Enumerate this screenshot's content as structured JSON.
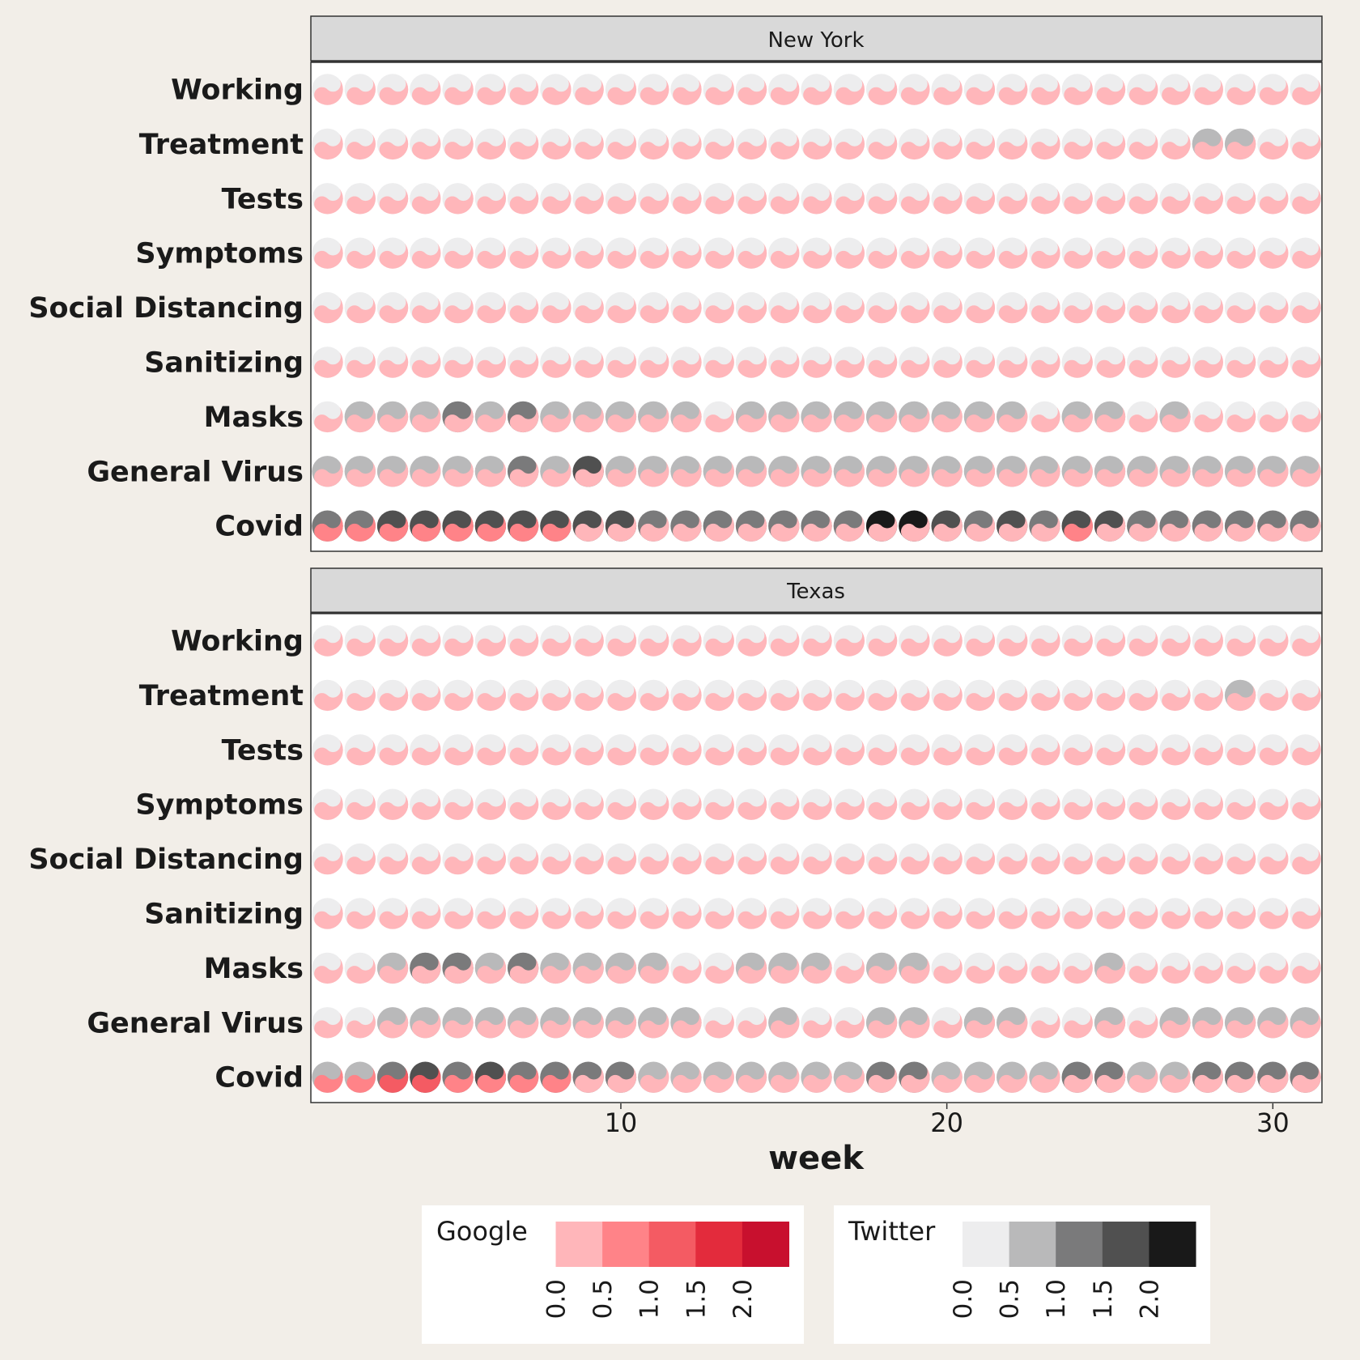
{
  "chart_data": {
    "type": "heatmap",
    "glyph": "yin-yang",
    "xlabel": "week",
    "x_ticks": [
      10,
      20,
      30
    ],
    "weeks": [
      1,
      2,
      3,
      4,
      5,
      6,
      7,
      8,
      9,
      10,
      11,
      12,
      13,
      14,
      15,
      16,
      17,
      18,
      19,
      20,
      21,
      22,
      23,
      24,
      25,
      26,
      27,
      28,
      29,
      30,
      31
    ],
    "categories": [
      "Working",
      "Treatment",
      "Tests",
      "Symptoms",
      "Social Distancing",
      "Sanitizing",
      "Masks",
      "General Virus",
      "Covid"
    ],
    "scales": {
      "google": {
        "title": "Google",
        "breaks": [
          "0.0",
          "0.5",
          "1.0",
          "1.5",
          "2.0"
        ],
        "colors": [
          "#FFB6BA",
          "#FF8388",
          "#F45B63",
          "#E32B3C",
          "#C8102E"
        ]
      },
      "twitter": {
        "title": "Twitter",
        "breaks": [
          "0.0",
          "0.5",
          "1.0",
          "1.5",
          "2.0"
        ],
        "colors": [
          "#EDEDEE",
          "#B9B9BA",
          "#7A7A7B",
          "#505050",
          "#191919"
        ]
      }
    },
    "panels": [
      {
        "title": "New York",
        "google": {
          "Working": [
            0,
            0,
            0,
            0,
            0,
            0,
            0,
            0,
            0,
            0,
            0,
            0,
            0,
            0,
            0,
            0,
            0,
            0,
            0,
            0,
            0,
            0,
            0,
            0,
            0,
            0,
            0,
            0,
            0,
            0,
            0
          ],
          "Treatment": [
            0,
            0,
            0,
            0,
            0,
            0,
            0,
            0,
            0,
            0,
            0,
            0,
            0,
            0,
            0,
            0,
            0,
            0,
            0,
            0,
            0,
            0,
            0,
            0,
            0,
            0,
            0,
            0,
            0,
            0,
            0
          ],
          "Tests": [
            0,
            0,
            0,
            0,
            0,
            0,
            0,
            0,
            0,
            0,
            0,
            0,
            0,
            0,
            0,
            0,
            0,
            0,
            0,
            0,
            0,
            0,
            0,
            0,
            0,
            0,
            0,
            0,
            0,
            0,
            0
          ],
          "Symptoms": [
            0,
            0,
            0,
            0,
            0,
            0,
            0,
            0,
            0,
            0,
            0,
            0,
            0,
            0,
            0,
            0,
            0,
            0,
            0,
            0,
            0,
            0,
            0,
            0,
            0,
            0,
            0,
            0,
            0,
            0,
            0
          ],
          "Social Distancing": [
            0,
            0,
            0,
            0,
            0,
            0,
            0,
            0,
            0,
            0,
            0,
            0,
            0,
            0,
            0,
            0,
            0,
            0,
            0,
            0,
            0,
            0,
            0,
            0,
            0,
            0,
            0,
            0,
            0,
            0,
            0
          ],
          "Sanitizing": [
            0,
            0,
            0,
            0,
            0,
            0,
            0,
            0,
            0,
            0,
            0,
            0,
            0,
            0,
            0,
            0,
            0,
            0,
            0,
            0,
            0,
            0,
            0,
            0,
            0,
            0,
            0,
            0,
            0,
            0,
            0
          ],
          "Masks": [
            0,
            0,
            0,
            0,
            0,
            0,
            0,
            0,
            0,
            0,
            0,
            0,
            0,
            0,
            0,
            0,
            0,
            0,
            0,
            0,
            0,
            0,
            0,
            0,
            0,
            0,
            0,
            0,
            0,
            0,
            0
          ],
          "General Virus": [
            0,
            0,
            0,
            0,
            0,
            0,
            0,
            0,
            0,
            0,
            0,
            0,
            0,
            0,
            0,
            0,
            0,
            0,
            0,
            0,
            0,
            0,
            0,
            0,
            0,
            0,
            0,
            0,
            0,
            0,
            0
          ],
          "Covid": [
            1,
            1,
            1,
            1,
            1,
            1,
            1,
            1,
            0,
            0,
            0,
            0,
            0,
            0,
            0,
            0,
            0,
            0,
            0,
            0,
            0,
            0,
            0,
            1,
            0,
            0,
            0,
            0,
            0,
            0,
            0
          ]
        },
        "twitter": {
          "Working": [
            0,
            0,
            0,
            0,
            0,
            0,
            0,
            0,
            0,
            0,
            0,
            0,
            0,
            0,
            0,
            0,
            0,
            0,
            0,
            0,
            0,
            0,
            0,
            0,
            0,
            0,
            0,
            0,
            0,
            0,
            0
          ],
          "Treatment": [
            0,
            0,
            0,
            0,
            0,
            0,
            0,
            0,
            0,
            0,
            0,
            0,
            0,
            0,
            0,
            0,
            0,
            0,
            0,
            0,
            0,
            0,
            0,
            0,
            0,
            0,
            0,
            1,
            1,
            0,
            0
          ],
          "Tests": [
            0,
            0,
            0,
            0,
            0,
            0,
            0,
            0,
            0,
            0,
            0,
            0,
            0,
            0,
            0,
            0,
            0,
            0,
            0,
            0,
            0,
            0,
            0,
            0,
            0,
            0,
            0,
            0,
            0,
            0,
            0
          ],
          "Symptoms": [
            0,
            0,
            0,
            0,
            0,
            0,
            0,
            0,
            0,
            0,
            0,
            0,
            0,
            0,
            0,
            0,
            0,
            0,
            0,
            0,
            0,
            0,
            0,
            0,
            0,
            0,
            0,
            0,
            0,
            0,
            0
          ],
          "Social Distancing": [
            0,
            0,
            0,
            0,
            0,
            0,
            0,
            0,
            0,
            0,
            0,
            0,
            0,
            0,
            0,
            0,
            0,
            0,
            0,
            0,
            0,
            0,
            0,
            0,
            0,
            0,
            0,
            0,
            0,
            0,
            0
          ],
          "Sanitizing": [
            0,
            0,
            0,
            0,
            0,
            0,
            0,
            0,
            0,
            0,
            0,
            0,
            0,
            0,
            0,
            0,
            0,
            0,
            0,
            0,
            0,
            0,
            0,
            0,
            0,
            0,
            0,
            0,
            0,
            0,
            0
          ],
          "Masks": [
            0,
            1,
            1,
            1,
            2,
            1,
            2,
            1,
            1,
            1,
            1,
            1,
            0,
            1,
            1,
            1,
            1,
            1,
            1,
            1,
            1,
            1,
            0,
            1,
            1,
            0,
            1,
            0,
            0,
            0,
            0
          ],
          "General Virus": [
            1,
            1,
            1,
            1,
            1,
            1,
            2,
            1,
            3,
            1,
            1,
            1,
            1,
            1,
            1,
            1,
            1,
            1,
            1,
            1,
            1,
            1,
            1,
            1,
            1,
            1,
            1,
            1,
            1,
            1,
            1
          ],
          "Covid": [
            2,
            2,
            3,
            3,
            3,
            3,
            3,
            3,
            3,
            3,
            2,
            2,
            2,
            2,
            2,
            2,
            2,
            4,
            4,
            3,
            2,
            3,
            2,
            3,
            3,
            2,
            2,
            2,
            2,
            2,
            2
          ]
        }
      },
      {
        "title": "Texas",
        "google": {
          "Working": [
            0,
            0,
            0,
            0,
            0,
            0,
            0,
            0,
            0,
            0,
            0,
            0,
            0,
            0,
            0,
            0,
            0,
            0,
            0,
            0,
            0,
            0,
            0,
            0,
            0,
            0,
            0,
            0,
            0,
            0,
            0
          ],
          "Treatment": [
            0,
            0,
            0,
            0,
            0,
            0,
            0,
            0,
            0,
            0,
            0,
            0,
            0,
            0,
            0,
            0,
            0,
            0,
            0,
            0,
            0,
            0,
            0,
            0,
            0,
            0,
            0,
            0,
            0,
            0,
            0
          ],
          "Tests": [
            0,
            0,
            0,
            0,
            0,
            0,
            0,
            0,
            0,
            0,
            0,
            0,
            0,
            0,
            0,
            0,
            0,
            0,
            0,
            0,
            0,
            0,
            0,
            0,
            0,
            0,
            0,
            0,
            0,
            0,
            0
          ],
          "Symptoms": [
            0,
            0,
            0,
            0,
            0,
            0,
            0,
            0,
            0,
            0,
            0,
            0,
            0,
            0,
            0,
            0,
            0,
            0,
            0,
            0,
            0,
            0,
            0,
            0,
            0,
            0,
            0,
            0,
            0,
            0,
            0
          ],
          "Social Distancing": [
            0,
            0,
            0,
            0,
            0,
            0,
            0,
            0,
            0,
            0,
            0,
            0,
            0,
            0,
            0,
            0,
            0,
            0,
            0,
            0,
            0,
            0,
            0,
            0,
            0,
            0,
            0,
            0,
            0,
            0,
            0
          ],
          "Sanitizing": [
            0,
            0,
            0,
            0,
            0,
            0,
            0,
            0,
            0,
            0,
            0,
            0,
            0,
            0,
            0,
            0,
            0,
            0,
            0,
            0,
            0,
            0,
            0,
            0,
            0,
            0,
            0,
            0,
            0,
            0,
            0
          ],
          "Masks": [
            0,
            0,
            0,
            0,
            0,
            0,
            0,
            0,
            0,
            0,
            0,
            0,
            0,
            0,
            0,
            0,
            0,
            0,
            0,
            0,
            0,
            0,
            0,
            0,
            0,
            0,
            0,
            0,
            0,
            0,
            0
          ],
          "General Virus": [
            0,
            0,
            0,
            0,
            0,
            0,
            0,
            0,
            0,
            0,
            0,
            0,
            0,
            0,
            0,
            0,
            0,
            0,
            0,
            0,
            0,
            0,
            0,
            0,
            0,
            0,
            0,
            0,
            0,
            0,
            0
          ],
          "Covid": [
            1,
            1,
            2,
            2,
            1,
            1,
            1,
            1,
            0,
            0,
            0,
            0,
            0,
            0,
            0,
            0,
            0,
            0,
            0,
            0,
            0,
            0,
            0,
            0,
            0,
            0,
            0,
            0,
            0,
            0,
            0
          ]
        },
        "twitter": {
          "Working": [
            0,
            0,
            0,
            0,
            0,
            0,
            0,
            0,
            0,
            0,
            0,
            0,
            0,
            0,
            0,
            0,
            0,
            0,
            0,
            0,
            0,
            0,
            0,
            0,
            0,
            0,
            0,
            0,
            0,
            0,
            0
          ],
          "Treatment": [
            0,
            0,
            0,
            0,
            0,
            0,
            0,
            0,
            0,
            0,
            0,
            0,
            0,
            0,
            0,
            0,
            0,
            0,
            0,
            0,
            0,
            0,
            0,
            0,
            0,
            0,
            0,
            0,
            1,
            0,
            0
          ],
          "Tests": [
            0,
            0,
            0,
            0,
            0,
            0,
            0,
            0,
            0,
            0,
            0,
            0,
            0,
            0,
            0,
            0,
            0,
            0,
            0,
            0,
            0,
            0,
            0,
            0,
            0,
            0,
            0,
            0,
            0,
            0,
            0
          ],
          "Symptoms": [
            0,
            0,
            0,
            0,
            0,
            0,
            0,
            0,
            0,
            0,
            0,
            0,
            0,
            0,
            0,
            0,
            0,
            0,
            0,
            0,
            0,
            0,
            0,
            0,
            0,
            0,
            0,
            0,
            0,
            0,
            0
          ],
          "Social Distancing": [
            0,
            0,
            0,
            0,
            0,
            0,
            0,
            0,
            0,
            0,
            0,
            0,
            0,
            0,
            0,
            0,
            0,
            0,
            0,
            0,
            0,
            0,
            0,
            0,
            0,
            0,
            0,
            0,
            0,
            0,
            0
          ],
          "Sanitizing": [
            0,
            0,
            0,
            0,
            0,
            0,
            0,
            0,
            0,
            0,
            0,
            0,
            0,
            0,
            0,
            0,
            0,
            0,
            0,
            0,
            0,
            0,
            0,
            0,
            0,
            0,
            0,
            0,
            0,
            0,
            0
          ],
          "Masks": [
            0,
            0,
            1,
            2,
            2,
            1,
            2,
            1,
            1,
            1,
            1,
            0,
            0,
            1,
            1,
            1,
            0,
            1,
            1,
            0,
            0,
            0,
            0,
            0,
            1,
            0,
            0,
            0,
            0,
            0,
            0
          ],
          "General Virus": [
            0,
            0,
            1,
            1,
            1,
            1,
            1,
            1,
            1,
            1,
            1,
            1,
            0,
            0,
            1,
            0,
            0,
            1,
            1,
            0,
            1,
            1,
            0,
            0,
            1,
            0,
            1,
            1,
            1,
            1,
            1
          ],
          "Covid": [
            1,
            1,
            2,
            3,
            2,
            3,
            2,
            2,
            2,
            2,
            1,
            1,
            1,
            1,
            1,
            1,
            1,
            2,
            2,
            1,
            1,
            1,
            1,
            2,
            2,
            1,
            1,
            2,
            2,
            2,
            2
          ]
        }
      }
    ]
  }
}
